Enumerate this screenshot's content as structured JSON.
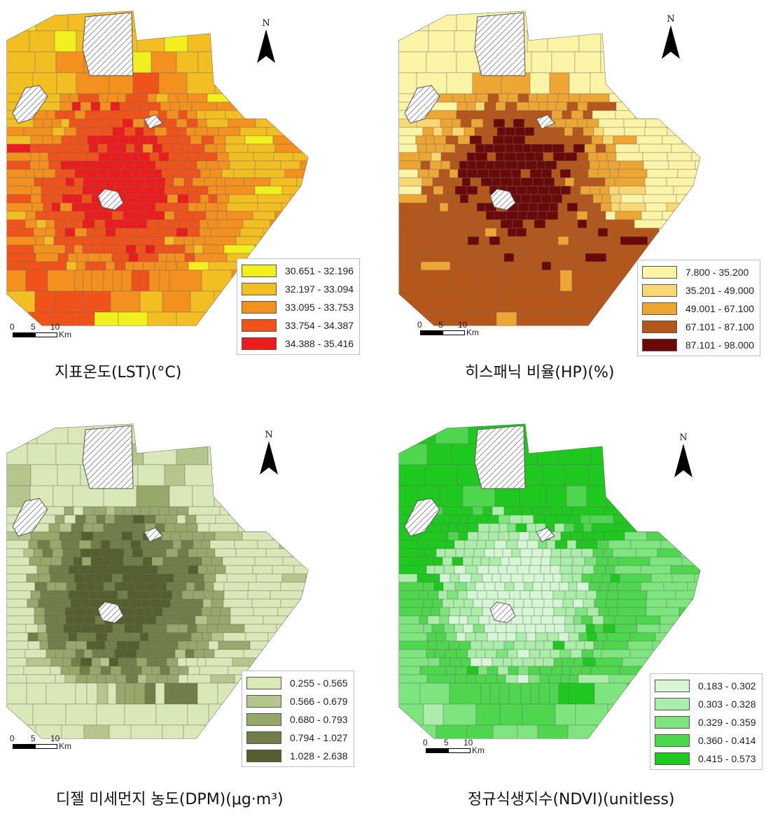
{
  "panels": [
    {
      "id": "lst",
      "caption": "지표온도(LST)(°C)",
      "north_label": "N",
      "scale": {
        "ticks": [
          "0",
          "5",
          "10"
        ],
        "unit": "Km"
      },
      "legend": [
        {
          "label": "30.651 - 32.196",
          "color": "#f2ef1e"
        },
        {
          "label": "32.197 - 33.094",
          "color": "#f3be22"
        },
        {
          "label": "33.095 - 33.753",
          "color": "#f3901e"
        },
        {
          "label": "33.754 - 34.387",
          "color": "#f0531a"
        },
        {
          "label": "34.388 - 35.416",
          "color": "#ec1c1c"
        }
      ]
    },
    {
      "id": "hp",
      "caption": "히스패닉 비율(HP)(%)",
      "north_label": "N",
      "scale": {
        "ticks": [
          "0",
          "5",
          "10"
        ],
        "unit": "Km"
      },
      "legend": [
        {
          "label": "7.800 - 35.200",
          "color": "#fbf4a6"
        },
        {
          "label": "35.201 - 49.000",
          "color": "#f9d773"
        },
        {
          "label": "49.001 - 67.100",
          "color": "#eda534"
        },
        {
          "label": "67.101 - 87.100",
          "color": "#b5571b"
        },
        {
          "label": "87.101 - 98.000",
          "color": "#6a0a08"
        }
      ]
    },
    {
      "id": "dpm",
      "caption": "디젤 미세먼지 농도(DPM)(μg·m³)",
      "north_label": "N",
      "scale": {
        "ticks": [
          "0",
          "5",
          "10"
        ],
        "unit": "Km"
      },
      "legend": [
        {
          "label": "0.255 - 0.565",
          "color": "#d8e8b6"
        },
        {
          "label": "0.566 - 0.679",
          "color": "#b5c68d"
        },
        {
          "label": "0.680 - 0.793",
          "color": "#96a96a"
        },
        {
          "label": "0.794 - 1.027",
          "color": "#6f7f47"
        },
        {
          "label": "1.028 - 2.638",
          "color": "#555f2d"
        }
      ]
    },
    {
      "id": "ndvi",
      "caption": "정규식생지수(NDVI)(unitless)",
      "north_label": "N",
      "scale": {
        "ticks": [
          "0",
          "5",
          "10"
        ],
        "unit": "Km"
      },
      "legend": [
        {
          "label": "0.183 - 0.302",
          "color": "#d6f7d6"
        },
        {
          "label": "0.303 - 0.328",
          "color": "#aaeeaa"
        },
        {
          "label": "0.329 - 0.359",
          "color": "#7ee57e"
        },
        {
          "label": "0.360 - 0.414",
          "color": "#4fd64f"
        },
        {
          "label": "0.415 - 0.573",
          "color": "#1ec81e"
        }
      ]
    }
  ]
}
